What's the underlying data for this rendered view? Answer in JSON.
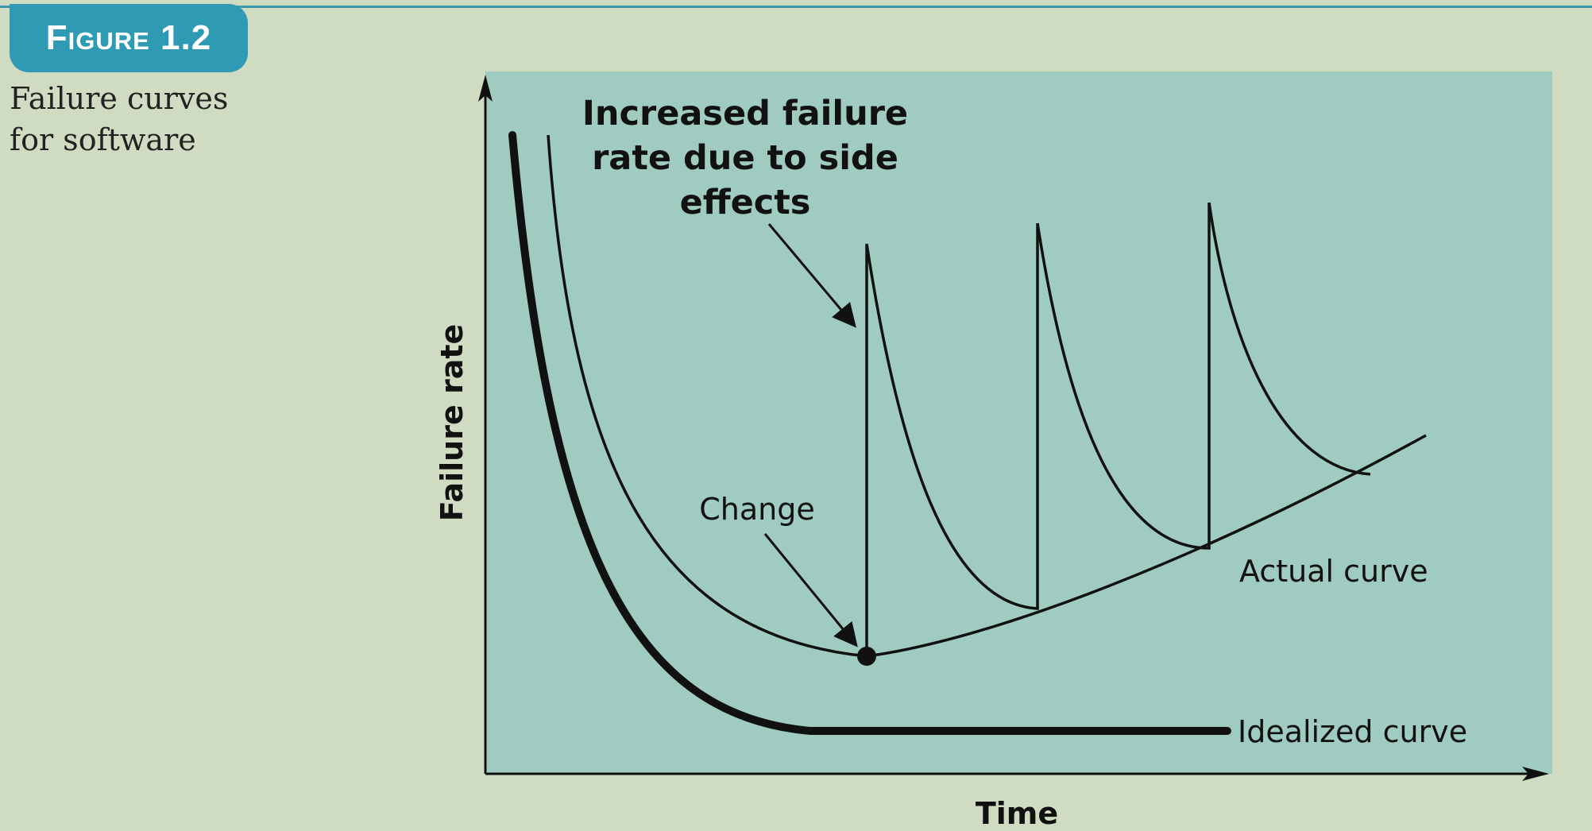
{
  "figure": {
    "label": "Figure 1.2",
    "caption_lines": [
      "Failure curves",
      "for software"
    ]
  },
  "diagram": {
    "y_axis_label": "Failure rate",
    "x_axis_label": "Time",
    "annotation_side_effects": [
      "Increased failure",
      "rate due to side",
      "effects"
    ],
    "annotation_change": "Change",
    "curve_actual_label": "Actual curve",
    "curve_idealized_label": "Idealized curve"
  },
  "colors": {
    "page_background": "#cfdcc1",
    "plot_background": "#9fcbc0",
    "badge": "#2f9ab3",
    "ink": "#111111"
  }
}
